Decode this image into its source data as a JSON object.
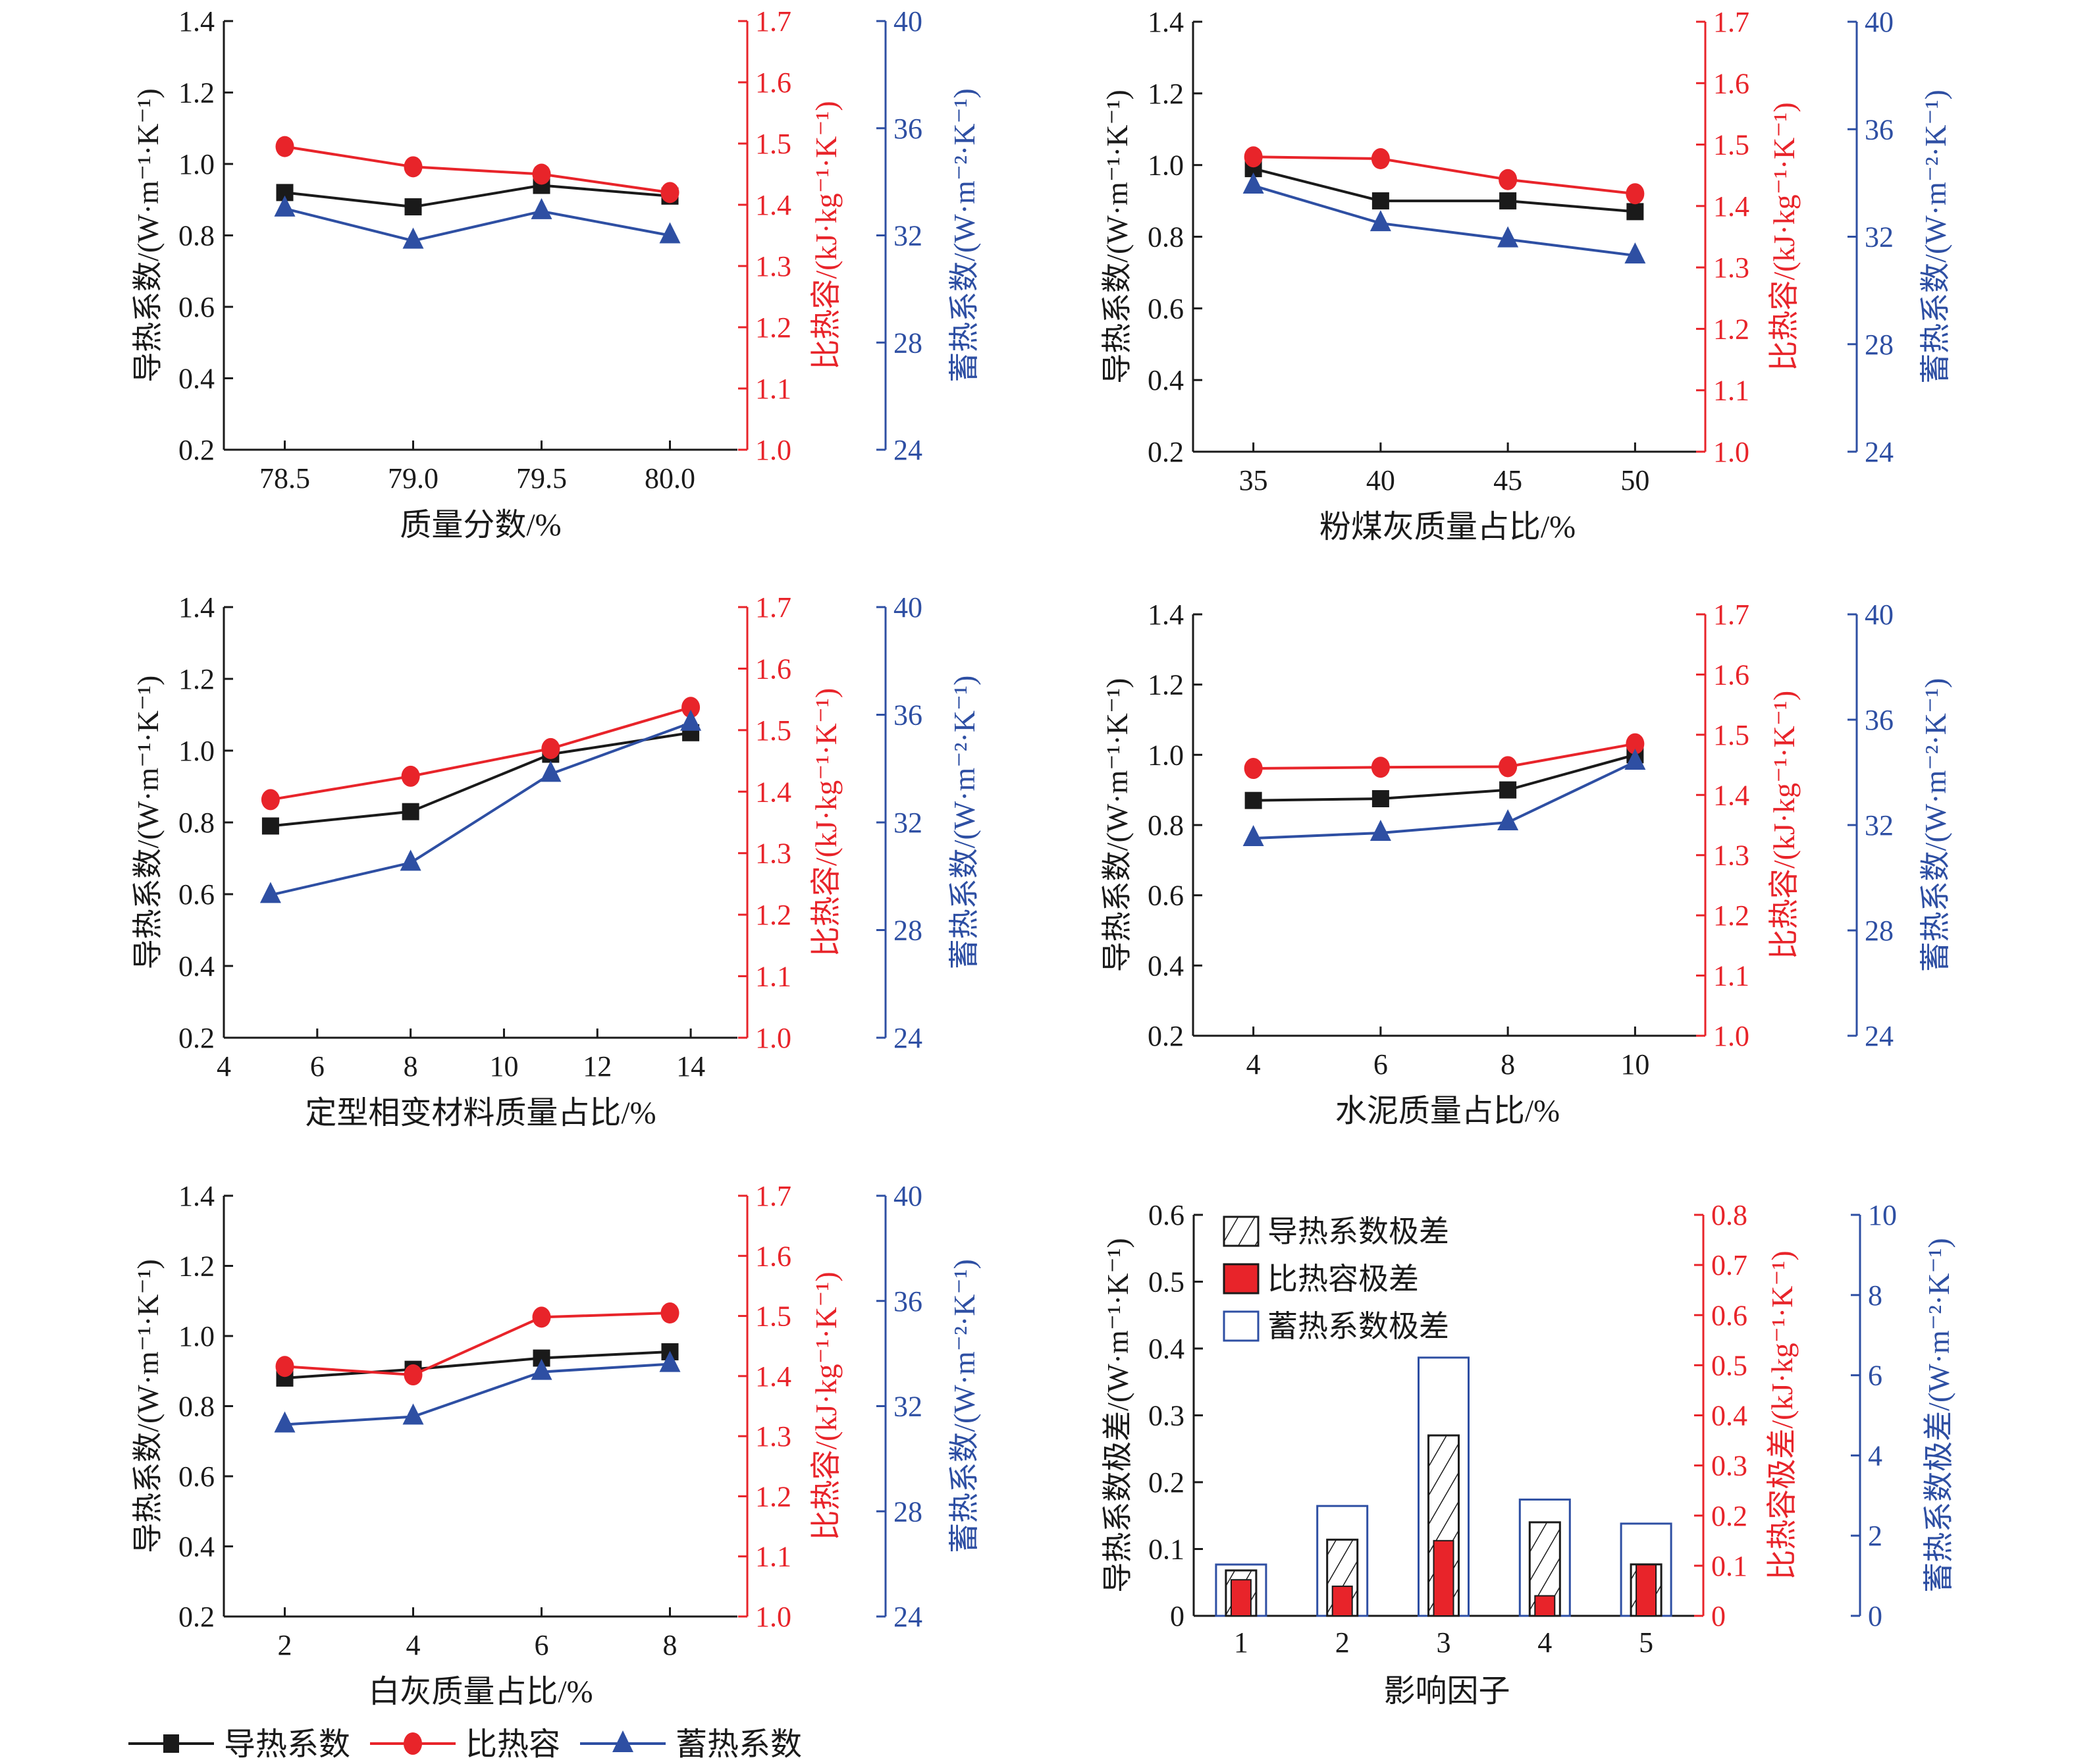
{
  "colors": {
    "black": "#1a1a1a",
    "red": "#e8242a",
    "blue": "#2e4fa3"
  },
  "legend": {
    "items": [
      {
        "label": "导热系数",
        "marker": "square",
        "color": "#1a1a1a"
      },
      {
        "label": "比热容",
        "marker": "circle",
        "color": "#e8242a"
      },
      {
        "label": "蓄热系数",
        "marker": "triangle",
        "color": "#2e4fa3"
      }
    ]
  },
  "chart_data": [
    {
      "type": "line",
      "xlabel": "质量分数/%",
      "x": [
        78.5,
        79.0,
        79.5,
        80.0
      ],
      "xticks": [
        "78.5",
        "79.0",
        "79.5",
        "80.0"
      ],
      "xcategorical": true,
      "ylabel_left": "导热系数/(W·m⁻¹·K⁻¹)",
      "ylabel_right1": "比热容/(kJ·kg⁻¹·K⁻¹)",
      "ylabel_right2": "蓄热系数/(W·m⁻²·K⁻¹)",
      "ylim_left": [
        0.2,
        1.4
      ],
      "yticks_left": [
        "0.2",
        "0.4",
        "0.6",
        "0.8",
        "1.0",
        "1.2",
        "1.4"
      ],
      "ylim_right1": [
        1.0,
        1.7
      ],
      "yticks_right1": [
        "1.0",
        "1.1",
        "1.2",
        "1.3",
        "1.4",
        "1.5",
        "1.6",
        "1.7"
      ],
      "ylim_right2": [
        24,
        40
      ],
      "yticks_right2": [
        "24",
        "28",
        "32",
        "36",
        "40"
      ],
      "series": [
        {
          "name": "导热系数",
          "axis": "left",
          "values": [
            0.92,
            0.88,
            0.94,
            0.91
          ]
        },
        {
          "name": "比热容",
          "axis": "right1",
          "values": [
            1.495,
            1.462,
            1.45,
            1.42
          ]
        },
        {
          "name": "蓄热系数",
          "axis": "right2",
          "values": [
            33.0,
            31.8,
            32.9,
            32.0
          ]
        }
      ]
    },
    {
      "type": "line",
      "xlabel": "粉煤灰质量占比/%",
      "x": [
        35,
        40,
        45,
        50
      ],
      "xticks": [
        "35",
        "40",
        "45",
        "50"
      ],
      "xcategorical": true,
      "ylabel_left": "导热系数/(W·m⁻¹·K⁻¹)",
      "ylabel_right1": "比热容/(kJ·kg⁻¹·K⁻¹)",
      "ylabel_right2": "蓄热系数/(W·m⁻²·K⁻¹)",
      "ylim_left": [
        0.2,
        1.4
      ],
      "yticks_left": [
        "0.2",
        "0.4",
        "0.6",
        "0.8",
        "1.0",
        "1.2",
        "1.4"
      ],
      "ylim_right1": [
        1.0,
        1.7
      ],
      "yticks_right1": [
        "1.0",
        "1.1",
        "1.2",
        "1.3",
        "1.4",
        "1.5",
        "1.6",
        "1.7"
      ],
      "ylim_right2": [
        24,
        40
      ],
      "yticks_right2": [
        "24",
        "28",
        "32",
        "36",
        "40"
      ],
      "series": [
        {
          "name": "导热系数",
          "axis": "left",
          "values": [
            0.99,
            0.9,
            0.9,
            0.87
          ]
        },
        {
          "name": "比热容",
          "axis": "right1",
          "values": [
            1.48,
            1.477,
            1.443,
            1.42
          ]
        },
        {
          "name": "蓄热系数",
          "axis": "right2",
          "values": [
            33.9,
            32.5,
            31.9,
            31.3
          ]
        }
      ]
    },
    {
      "type": "line",
      "xlabel": "定型相变材料质量占比/%",
      "x": [
        5,
        8,
        11,
        14
      ],
      "xticks": [
        "4",
        "6",
        "8",
        "10",
        "12",
        "14"
      ],
      "xtick_values": [
        4,
        6,
        8,
        10,
        12,
        14
      ],
      "xlim": [
        4,
        15
      ],
      "xcategorical": false,
      "ylabel_left": "导热系数/(W·m⁻¹·K⁻¹)",
      "ylabel_right1": "比热容/(kJ·kg⁻¹·K⁻¹)",
      "ylabel_right2": "蓄热系数/(W·m⁻²·K⁻¹)",
      "ylim_left": [
        0.2,
        1.4
      ],
      "yticks_left": [
        "0.2",
        "0.4",
        "0.6",
        "0.8",
        "1.0",
        "1.2",
        "1.4"
      ],
      "ylim_right1": [
        1.0,
        1.7
      ],
      "yticks_right1": [
        "1.0",
        "1.1",
        "1.2",
        "1.3",
        "1.4",
        "1.5",
        "1.6",
        "1.7"
      ],
      "ylim_right2": [
        24,
        40
      ],
      "yticks_right2": [
        "24",
        "28",
        "32",
        "36",
        "40"
      ],
      "series": [
        {
          "name": "导热系数",
          "axis": "left",
          "values": [
            0.79,
            0.83,
            0.99,
            1.05
          ]
        },
        {
          "name": "比热容",
          "axis": "right1",
          "values": [
            1.387,
            1.425,
            1.47,
            1.537
          ]
        },
        {
          "name": "蓄热系数",
          "axis": "right2",
          "values": [
            29.3,
            30.5,
            33.8,
            35.7
          ]
        }
      ]
    },
    {
      "type": "line",
      "xlabel": "水泥质量占比/%",
      "x": [
        4,
        6,
        8,
        10
      ],
      "xticks": [
        "4",
        "6",
        "8",
        "10"
      ],
      "xcategorical": true,
      "ylabel_left": "导热系数/(W·m⁻¹·K⁻¹)",
      "ylabel_right1": "比热容/(kJ·kg⁻¹·K⁻¹)",
      "ylabel_right2": "蓄热系数/(W·m⁻²·K⁻¹)",
      "ylim_left": [
        0.2,
        1.4
      ],
      "yticks_left": [
        "0.2",
        "0.4",
        "0.6",
        "0.8",
        "1.0",
        "1.2",
        "1.4"
      ],
      "ylim_right1": [
        1.0,
        1.7
      ],
      "yticks_right1": [
        "1.0",
        "1.1",
        "1.2",
        "1.3",
        "1.4",
        "1.5",
        "1.6",
        "1.7"
      ],
      "ylim_right2": [
        24,
        40
      ],
      "yticks_right2": [
        "24",
        "28",
        "32",
        "36",
        "40"
      ],
      "series": [
        {
          "name": "导热系数",
          "axis": "left",
          "values": [
            0.87,
            0.875,
            0.9,
            1.0
          ]
        },
        {
          "name": "比热容",
          "axis": "right1",
          "values": [
            1.444,
            1.446,
            1.447,
            1.485
          ]
        },
        {
          "name": "蓄热系数",
          "axis": "right2",
          "values": [
            31.5,
            31.7,
            32.1,
            34.4
          ]
        }
      ]
    },
    {
      "type": "line",
      "xlabel": "白灰质量占比/%",
      "x": [
        2,
        4,
        6,
        8
      ],
      "xticks": [
        "2",
        "4",
        "6",
        "8"
      ],
      "xcategorical": true,
      "ylabel_left": "导热系数/(W·m⁻¹·K⁻¹)",
      "ylabel_right1": "比热容/(kJ·kg⁻¹·K⁻¹)",
      "ylabel_right2": "蓄热系数/(W·m⁻²·K⁻¹)",
      "ylim_left": [
        0.2,
        1.4
      ],
      "yticks_left": [
        "0.2",
        "0.4",
        "0.6",
        "0.8",
        "1.0",
        "1.2",
        "1.4"
      ],
      "ylim_right1": [
        1.0,
        1.7
      ],
      "yticks_right1": [
        "1.0",
        "1.1",
        "1.2",
        "1.3",
        "1.4",
        "1.5",
        "1.6",
        "1.7"
      ],
      "ylim_right2": [
        24,
        40
      ],
      "yticks_right2": [
        "24",
        "28",
        "32",
        "36",
        "40"
      ],
      "series": [
        {
          "name": "导热系数",
          "axis": "left",
          "values": [
            0.88,
            0.905,
            0.937,
            0.955
          ]
        },
        {
          "name": "比热容",
          "axis": "right1",
          "values": [
            1.416,
            1.402,
            1.498,
            1.505
          ]
        },
        {
          "name": "蓄热系数",
          "axis": "right2",
          "values": [
            31.3,
            31.6,
            33.3,
            33.6
          ]
        }
      ]
    },
    {
      "type": "bar",
      "xlabel": "影响因子",
      "categories": [
        "1",
        "2",
        "3",
        "4",
        "5"
      ],
      "ylabel_left": "导热系数极差/(W·m⁻¹·K⁻¹)",
      "ylabel_right1": "比热容极差/(kJ·kg⁻¹·K⁻¹)",
      "ylabel_right2": "蓄热系数极差/(W·m⁻²·K⁻¹)",
      "ylim_left": [
        0,
        0.6
      ],
      "yticks_left": [
        "0",
        "0.1",
        "0.2",
        "0.3",
        "0.4",
        "0.5",
        "0.6"
      ],
      "ylim_right1": [
        0,
        0.8
      ],
      "yticks_right1": [
        "0",
        "0.1",
        "0.2",
        "0.3",
        "0.4",
        "0.5",
        "0.6",
        "0.7",
        "0.8"
      ],
      "ylim_right2": [
        0,
        10
      ],
      "yticks_right2": [
        "0",
        "2",
        "4",
        "6",
        "8",
        "10"
      ],
      "legend_position": "top-left",
      "series": [
        {
          "name": "导热系数极差",
          "axis": "left",
          "style": "hatched",
          "values": [
            0.068,
            0.114,
            0.27,
            0.14,
            0.077
          ]
        },
        {
          "name": "比热容极差",
          "axis": "right1",
          "style": "red-fill",
          "values": [
            0.072,
            0.059,
            0.15,
            0.04,
            0.102
          ]
        },
        {
          "name": "蓄热系数极差",
          "axis": "right2",
          "style": "blue-outline",
          "values": [
            1.28,
            2.74,
            6.44,
            2.9,
            2.3
          ]
        }
      ]
    }
  ]
}
